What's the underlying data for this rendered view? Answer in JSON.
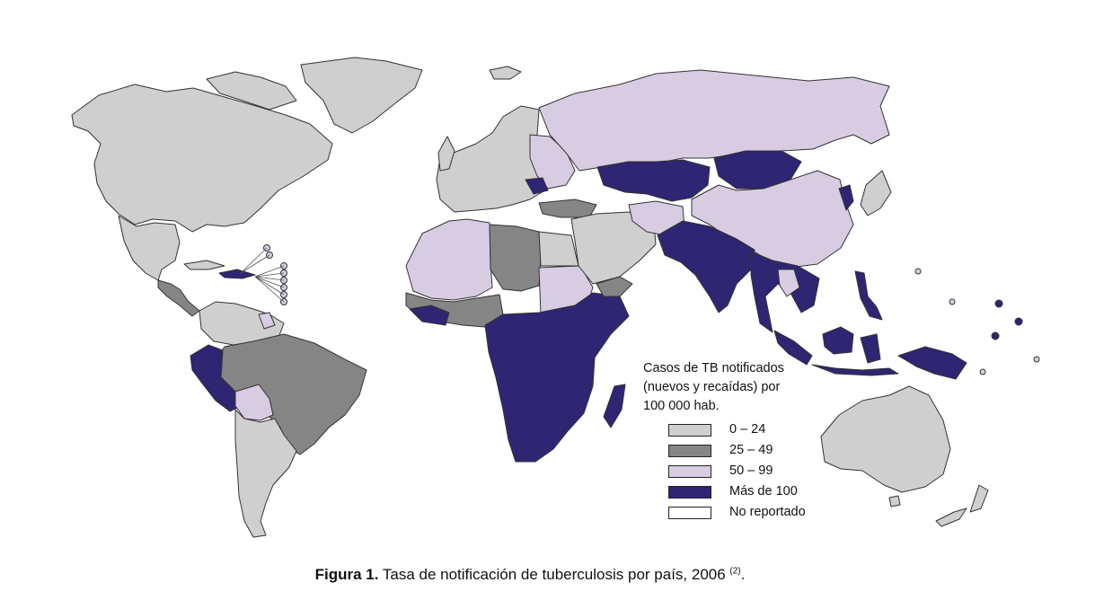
{
  "legend": {
    "title_line1": "Casos de TB notificados",
    "title_line2": "(nuevos y recaídas) por",
    "title_line3": "100 000 hab.",
    "categories": [
      {
        "label": "0 – 24",
        "color": "#cfcfcf"
      },
      {
        "label": "25 – 49",
        "color": "#858585"
      },
      {
        "label": "50 – 99",
        "color": "#d8cce3"
      },
      {
        "label": "Más de 100",
        "color": "#2e2573"
      },
      {
        "label": "No reportado",
        "color": "#ffffff"
      }
    ]
  },
  "caption": {
    "bold": "Figura 1.",
    "text": " Tasa de notificación de tuberculosis por país, 2006 ",
    "ref": "(2)",
    "end": "."
  },
  "regions": [
    {
      "name": "north-america",
      "category": "0 – 24"
    },
    {
      "name": "greenland",
      "category": "0 – 24"
    },
    {
      "name": "mexico",
      "category": "0 – 24"
    },
    {
      "name": "central-america",
      "category": "25 – 49"
    },
    {
      "name": "caribbean-islands",
      "category": "Más de 100"
    },
    {
      "name": "venezuela-colombia",
      "category": "0 – 24"
    },
    {
      "name": "brazil",
      "category": "25 – 49"
    },
    {
      "name": "peru",
      "category": "Más de 100"
    },
    {
      "name": "bolivia",
      "category": "50 – 99"
    },
    {
      "name": "southern-cone",
      "category": "0 – 24"
    },
    {
      "name": "europe",
      "category": "0 – 24"
    },
    {
      "name": "eastern-europe",
      "category": "50 – 99"
    },
    {
      "name": "russia",
      "category": "50 – 99"
    },
    {
      "name": "north-africa-west",
      "category": "50 – 99"
    },
    {
      "name": "north-africa-mid",
      "category": "25 – 49"
    },
    {
      "name": "egypt",
      "category": "0 – 24"
    },
    {
      "name": "sudan",
      "category": "50 – 99"
    },
    {
      "name": "west-africa",
      "category": "25 – 49"
    },
    {
      "name": "sub-saharan-africa",
      "category": "Más de 100"
    },
    {
      "name": "madagascar",
      "category": "Más de 100"
    },
    {
      "name": "middle-east",
      "category": "0 – 24"
    },
    {
      "name": "arabia-south",
      "category": "25 – 49"
    },
    {
      "name": "central-asia",
      "category": "Más de 100"
    },
    {
      "name": "mongolia",
      "category": "Más de 100"
    },
    {
      "name": "china",
      "category": "50 – 99"
    },
    {
      "name": "south-asia",
      "category": "Más de 100"
    },
    {
      "name": "southeast-asia",
      "category": "Más de 100"
    },
    {
      "name": "indonesia",
      "category": "Más de 100"
    },
    {
      "name": "japan",
      "category": "0 – 24"
    },
    {
      "name": "australia",
      "category": "0 – 24"
    },
    {
      "name": "new-zealand",
      "category": "0 – 24"
    }
  ]
}
